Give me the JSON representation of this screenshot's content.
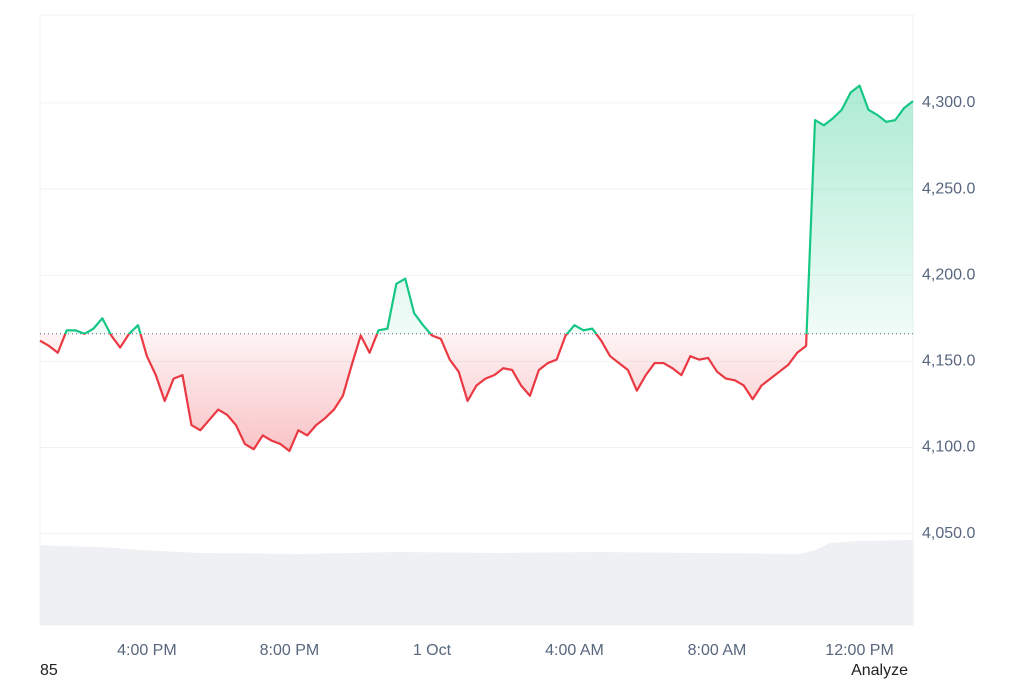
{
  "chart_data": {
    "type": "line",
    "categories": [
      null,
      null,
      null,
      null,
      null,
      null,
      null,
      null,
      null,
      null,
      null,
      null,
      "4:00 PM",
      null,
      null,
      null,
      null,
      null,
      null,
      null,
      null,
      null,
      null,
      null,
      null,
      null,
      null,
      null,
      "8:00 PM",
      null,
      null,
      null,
      null,
      null,
      null,
      null,
      null,
      null,
      null,
      null,
      null,
      null,
      null,
      null,
      "1 Oct",
      null,
      null,
      null,
      null,
      null,
      null,
      null,
      null,
      null,
      null,
      null,
      null,
      null,
      null,
      null,
      "4:00 AM",
      null,
      null,
      null,
      null,
      null,
      null,
      null,
      null,
      null,
      null,
      null,
      null,
      null,
      null,
      null,
      "8:00 AM",
      null,
      null,
      null,
      null,
      null,
      null,
      null,
      null,
      null,
      null,
      null,
      null,
      null,
      null,
      null,
      "12:00 PM",
      null,
      null,
      null,
      null,
      null,
      null
    ],
    "values": [
      4162,
      4159,
      4155,
      4168,
      4168,
      4166,
      4169,
      4175,
      4165,
      4158,
      4166,
      4171,
      4153,
      4142,
      4127,
      4140,
      4142,
      4113,
      4110,
      4116,
      4122,
      4119,
      4113,
      4102,
      4099,
      4107,
      4104,
      4102,
      4098,
      4110,
      4107,
      4113,
      4117,
      4122,
      4130,
      4148,
      4165,
      4155,
      4168,
      4169,
      4195,
      4198,
      4178,
      4171,
      4165,
      4163,
      4151,
      4144,
      4127,
      4136,
      4140,
      4142,
      4146,
      4145,
      4136,
      4130,
      4145,
      4149,
      4151,
      4165,
      4171,
      4168,
      4169,
      4162,
      4153,
      4149,
      4145,
      4133,
      4142,
      4149,
      4149,
      4146,
      4142,
      4153,
      4151,
      4152,
      4144,
      4140,
      4139,
      4136,
      4128,
      4136,
      4140,
      4144,
      4148,
      4155,
      4159,
      4290,
      4287,
      4291,
      4296,
      4306,
      4310,
      4296,
      4293,
      4289,
      4290,
      4297,
      4301
    ],
    "baseline": 4166,
    "up_color": "#16c784",
    "down_color": "#ea3943",
    "ylim": [
      3997,
      4351
    ],
    "yticks": [
      {
        "value": 4050,
        "label": "4,050.0"
      },
      {
        "value": 4100,
        "label": "4,100.0"
      },
      {
        "value": 4150,
        "label": "4,150.0"
      },
      {
        "value": 4200,
        "label": "4,200.0"
      },
      {
        "value": 4250,
        "label": "4,250.0"
      },
      {
        "value": 4300,
        "label": "4,300.0"
      }
    ],
    "grid": true
  },
  "footer": {
    "left": "85",
    "right": "Analyze"
  }
}
